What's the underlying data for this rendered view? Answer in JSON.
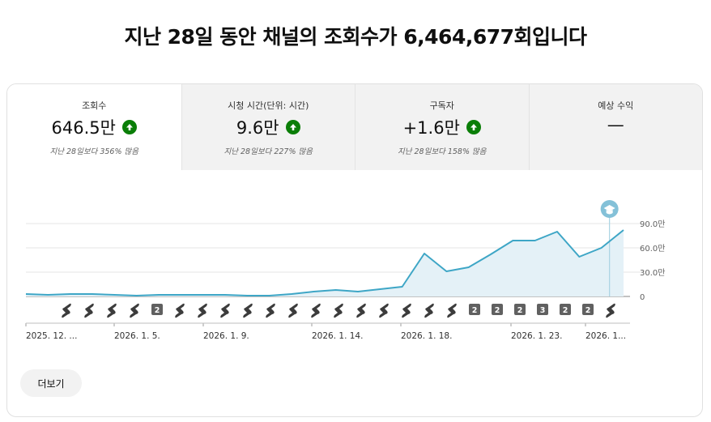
{
  "headline": "지난 28일 동안 채널의 조회수가 6,464,677회입니다",
  "tabs": [
    {
      "title": "조회수",
      "value": "646.5만",
      "trend": "up",
      "compare": "지난 28일보다 356% 많음"
    },
    {
      "title": "시청 시간(단위: 시간)",
      "value": "9.6만",
      "trend": "up",
      "compare": "지난 28일보다 227% 많음"
    },
    {
      "title": "구독자",
      "value": "+1.6만",
      "trend": "up",
      "compare": "지난 28일보다 158% 많음"
    },
    {
      "title": "예상 수익",
      "value": "—",
      "trend": "none",
      "compare": ""
    }
  ],
  "colors": {
    "line": "#3ea6c6",
    "area": "#e4f1f7",
    "trend_up": "#0a7e07",
    "marker_badge": "#84c1d8"
  },
  "more_button": "더보기",
  "chart_data": {
    "type": "area",
    "ylim": [
      0,
      90
    ],
    "y_unit": "만",
    "y_ticks": [
      "0",
      "30.0만",
      "60.0만",
      "90.0만"
    ],
    "grid": true,
    "x_tick_labels": [
      "2025. 12. ...",
      "2026. 1. 5.",
      "2026. 1. 9.",
      "2026. 1. 14.",
      "2026. 1. 18.",
      "2026. 1. 23.",
      "2026. 1..."
    ],
    "values": [
      3,
      2,
      3,
      3,
      2,
      1,
      2,
      2,
      2,
      2,
      1,
      1,
      3,
      6,
      8,
      6,
      9,
      12,
      53,
      31,
      36,
      52,
      69,
      69,
      80,
      49,
      60,
      82
    ],
    "post_markers": [
      "short",
      "short",
      "short",
      "short",
      "2",
      "short",
      "short",
      "short",
      "short",
      "short",
      "short",
      "short",
      "short",
      "short",
      "short",
      "short",
      "short",
      "short",
      "2",
      "2",
      "2",
      "3",
      "2",
      "2",
      "short",
      "short",
      "short"
    ]
  }
}
